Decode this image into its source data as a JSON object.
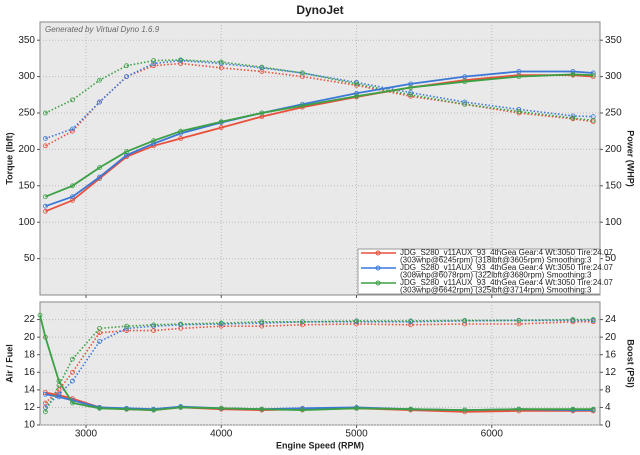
{
  "chart_data": [
    {
      "type": "line",
      "title": "DynoJet",
      "annotation": "Generated by Virtual Dyno 1.6.9",
      "ylabel": "Torque (lbft)",
      "y2label": "Power (WHP)",
      "x": [
        2700,
        2900,
        3100,
        3300,
        3500,
        3700,
        4000,
        4300,
        4600,
        5000,
        5400,
        5800,
        6200,
        6600,
        6750
      ],
      "xlim": [
        2660,
        6800
      ],
      "xticks": [
        3000,
        4000,
        5000,
        6000
      ],
      "show_xtick_labels": false,
      "ylim": [
        0,
        375
      ],
      "yticks": [
        50,
        100,
        150,
        200,
        250,
        300,
        350
      ],
      "y2lim": [
        0,
        375
      ],
      "y2ticks": [
        50,
        100,
        150,
        200,
        250,
        300,
        350
      ],
      "grid": true,
      "series": [
        {
          "color": "#e8503c",
          "style": "dotted",
          "axis": "y",
          "values": [
            205,
            225,
            265,
            300,
            315,
            318,
            312,
            307,
            300,
            288,
            273,
            262,
            250,
            242,
            238
          ]
        },
        {
          "color": "#3c78d8",
          "style": "dotted",
          "axis": "y",
          "values": [
            215,
            228,
            265,
            300,
            318,
            322,
            318,
            312,
            305,
            292,
            278,
            265,
            255,
            246,
            245
          ]
        },
        {
          "color": "#3ca044",
          "style": "dotted",
          "axis": "y",
          "values": [
            250,
            268,
            295,
            315,
            322,
            323,
            320,
            313,
            305,
            290,
            275,
            262,
            252,
            243,
            240
          ]
        },
        {
          "color": "#e8503c",
          "style": "solid",
          "axis": "y2",
          "values": [
            115,
            130,
            160,
            190,
            205,
            215,
            230,
            245,
            258,
            272,
            285,
            295,
            302,
            302,
            300
          ]
        },
        {
          "color": "#3c78d8",
          "style": "solid",
          "axis": "y2",
          "values": [
            122,
            135,
            162,
            192,
            208,
            222,
            237,
            250,
            262,
            277,
            290,
            300,
            307,
            307,
            305
          ]
        },
        {
          "color": "#3ca044",
          "style": "solid",
          "axis": "y2",
          "values": [
            135,
            150,
            175,
            197,
            212,
            225,
            238,
            250,
            260,
            273,
            285,
            293,
            300,
            303,
            302
          ]
        }
      ],
      "legend": {
        "position": "lower right",
        "entries": [
          {
            "color": "#e8503c",
            "label": "JDG_S280_v11AUX_93_4thGea Gear:4 Wt:3050 Tire:24.07",
            "detail": "(303whp@6245rpm) (318lbft@3605rpm) Smoothing:3"
          },
          {
            "color": "#3c78d8",
            "label": "JDG_S280_v11AUX_93_4thGea Gear:4 Wt:3050 Tire:24.07",
            "detail": "(308whp@6078rpm) (322lbft@3680rpm) Smoothing:3"
          },
          {
            "color": "#3ca044",
            "label": "JDG_S280_v11AUX_93_4thGea Gear:4 Wt:3050 Tire:24.07",
            "detail": "(303whp@6642rpm) (325lbft@3714rpm) Smoothing:3"
          }
        ]
      }
    },
    {
      "type": "line",
      "xlabel": "Engine Speed (RPM)",
      "ylabel": "Air / Fuel",
      "y2label": "Boost (PSI)",
      "x": [
        2660,
        2700,
        2800,
        2900,
        3100,
        3300,
        3500,
        3700,
        4000,
        4300,
        4600,
        5000,
        5400,
        5800,
        6200,
        6600,
        6750
      ],
      "xlim": [
        2660,
        6800
      ],
      "xticks": [
        3000,
        4000,
        5000,
        6000
      ],
      "show_xtick_labels": true,
      "ylim": [
        10,
        24
      ],
      "yticks": [
        10,
        12,
        14,
        16,
        18,
        20,
        22
      ],
      "y2lim": [
        0,
        28
      ],
      "y2ticks": [
        0,
        4,
        8,
        12,
        16,
        20,
        24
      ],
      "grid": true,
      "series": [
        {
          "color": "#e8503c",
          "style": "solid",
          "axis": "y",
          "values": [
            null,
            13.7,
            13.4,
            13,
            12,
            11.8,
            11.7,
            12,
            11.8,
            11.7,
            11.8,
            11.9,
            11.7,
            11.5,
            11.6,
            11.6,
            11.6
          ]
        },
        {
          "color": "#3c78d8",
          "style": "solid",
          "axis": "y",
          "values": [
            null,
            13.5,
            13.2,
            12.8,
            12,
            11.9,
            11.8,
            12.1,
            11.9,
            11.8,
            11.9,
            12,
            11.8,
            11.7,
            11.8,
            11.7,
            11.7
          ]
        },
        {
          "color": "#3ca044",
          "style": "solid",
          "axis": "y",
          "values": [
            22.5,
            20,
            15,
            12.5,
            11.9,
            11.8,
            11.7,
            12,
            11.9,
            11.8,
            11.7,
            11.9,
            11.8,
            11.7,
            11.8,
            11.8,
            11.8
          ]
        },
        {
          "color": "#e8503c",
          "style": "dotted",
          "axis": "y2",
          "values": [
            null,
            5,
            8,
            12,
            21,
            21.5,
            21.5,
            22,
            22.5,
            22.5,
            22.8,
            23,
            22.8,
            23,
            23,
            23.5,
            23.5
          ]
        },
        {
          "color": "#3c78d8",
          "style": "dotted",
          "axis": "y2",
          "values": [
            null,
            4,
            7,
            10,
            19,
            22,
            22.5,
            22.8,
            23,
            23.2,
            23.5,
            23.5,
            23.5,
            23.7,
            23.8,
            23.8,
            23.8
          ]
        },
        {
          "color": "#3ca044",
          "style": "dotted",
          "axis": "y2",
          "values": [
            null,
            3,
            9,
            15,
            22,
            22.5,
            22.8,
            23,
            23.2,
            23.5,
            23.5,
            23.7,
            23.7,
            23.8,
            23.8,
            24,
            24
          ]
        }
      ]
    }
  ]
}
